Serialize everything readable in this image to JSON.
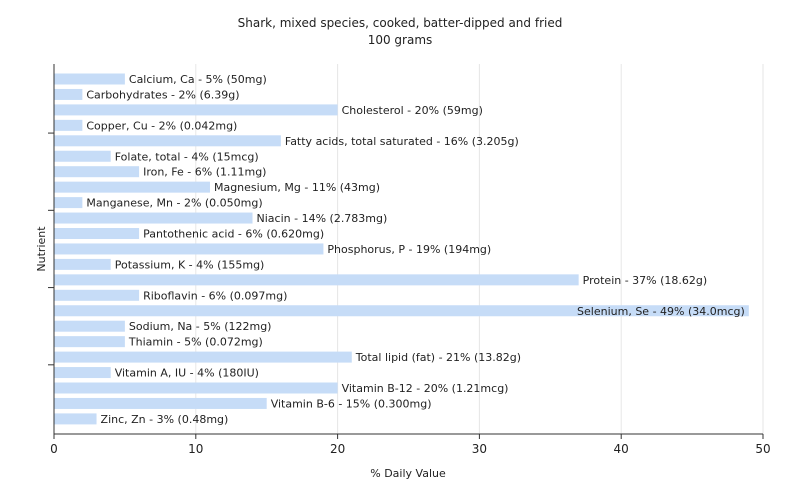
{
  "chart_data": {
    "type": "bar",
    "orientation": "horizontal",
    "title": "Shark, mixed species, cooked, batter-dipped and fried",
    "subtitle": "100 grams",
    "xlabel": "% Daily Value",
    "ylabel": "Nutrient",
    "xlim": [
      0,
      50
    ],
    "xticks": [
      "0",
      "10",
      "20",
      "30",
      "40",
      "50"
    ],
    "grid": true,
    "bar_color": "#c6dcf7",
    "categories": [
      "Calcium, Ca",
      "Carbohydrates",
      "Cholesterol",
      "Copper, Cu",
      "Fatty acids, total saturated",
      "Folate, total",
      "Iron, Fe",
      "Magnesium, Mg",
      "Manganese, Mn",
      "Niacin",
      "Pantothenic acid",
      "Phosphorus, P",
      "Potassium, K",
      "Protein",
      "Riboflavin",
      "Selenium, Se",
      "Sodium, Na",
      "Thiamin",
      "Total lipid (fat)",
      "Vitamin A, IU",
      "Vitamin B-12",
      "Vitamin B-6",
      "Zinc, Zn"
    ],
    "values": [
      5,
      2,
      20,
      2,
      16,
      4,
      6,
      11,
      2,
      14,
      6,
      19,
      4,
      37,
      6,
      49,
      5,
      5,
      21,
      4,
      20,
      15,
      3
    ],
    "labels": [
      "Calcium, Ca - 5% (50mg)",
      "Carbohydrates - 2% (6.39g)",
      "Cholesterol - 20% (59mg)",
      "Copper, Cu - 2% (0.042mg)",
      "Fatty acids, total saturated - 16% (3.205g)",
      "Folate, total - 4% (15mcg)",
      "Iron, Fe - 6% (1.11mg)",
      "Magnesium, Mg - 11% (43mg)",
      "Manganese, Mn - 2% (0.050mg)",
      "Niacin - 14% (2.783mg)",
      "Pantothenic acid - 6% (0.620mg)",
      "Phosphorus, P - 19% (194mg)",
      "Potassium, K - 4% (155mg)",
      "Protein - 37% (18.62g)",
      "Riboflavin - 6% (0.097mg)",
      "Selenium, Se - 49% (34.0mcg)",
      "Sodium, Na - 5% (122mg)",
      "Thiamin - 5% (0.072mg)",
      "Total lipid (fat) - 21% (13.82g)",
      "Vitamin A, IU - 4% (180IU)",
      "Vitamin B-12 - 20% (1.21mcg)",
      "Vitamin B-6 - 15% (0.300mg)",
      "Zinc, Zn - 3% (0.48mg)"
    ]
  }
}
